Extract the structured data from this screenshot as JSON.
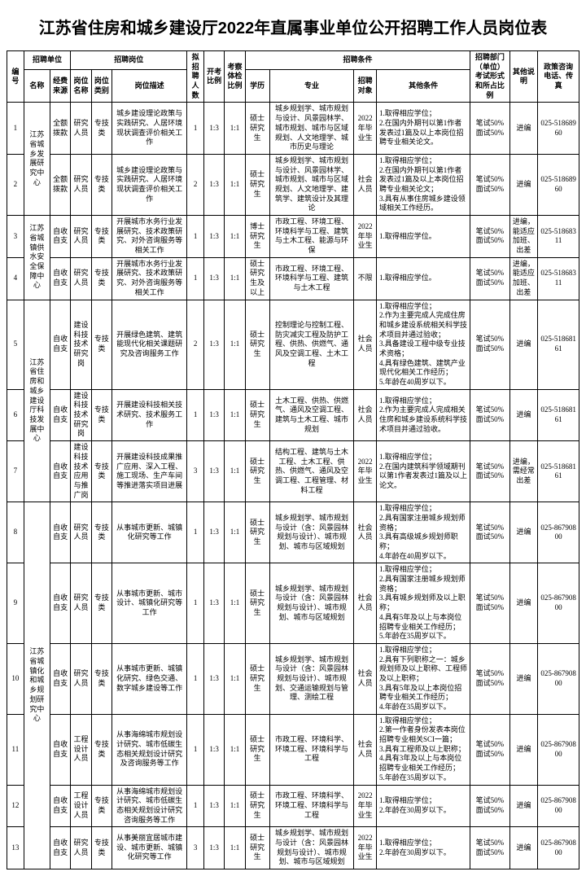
{
  "title": "江苏省住房和城乡建设厅2022年直属事业单位公开招聘工作人员岗位表",
  "headers": {
    "no": "编号",
    "unit_group": "招聘单位",
    "unit_name": "名称",
    "unit_fund": "经费来源",
    "pos_group": "招聘岗位",
    "pos_name": "岗位名称",
    "pos_cat": "岗位类别",
    "pos_desc": "岗位描述",
    "num": "拟招聘人数",
    "ratio1": "开考比例",
    "ratio2": "考察体检比例",
    "cond_group": "招聘条件",
    "edu": "学历",
    "major": "专业",
    "target": "招聘对象",
    "other": "其他条件",
    "exam": "招聘部门（单位）考试形式和所占比例",
    "note": "其他说明",
    "tel": "政策咨询电话、传真"
  },
  "rows": [
    {
      "no": "1",
      "unit": "江苏省城乡发展研究中心",
      "fund": "全额拨款",
      "pos": "研究人员",
      "cat": "专技类",
      "desc": "城乡建设理论政策与实践研究、人居环境现状调查评价相关工作",
      "num": "1",
      "r1": "1:3",
      "r2": "1:1",
      "edu": "硕士研究生",
      "major": "城乡规划学、城市规划与设计、风景园林学、城市规划、城市与区域规划、人文地理学、城市历史与理论",
      "target": "2022年毕业生",
      "other": "1.取得相应学位；\n2.在国内外期刊以第1作者发表过1篇及以上本岗位招聘专业相关论文。",
      "exam": "笔试50% 面试50%",
      "note": "进编",
      "tel": "025-51868960"
    },
    {
      "no": "2",
      "unit": "",
      "fund": "全额拨款",
      "pos": "研究人员",
      "cat": "专技类",
      "desc": "城乡建设理论政策与实践研究、人居环境现状调查评价相关工作",
      "num": "2",
      "r1": "1:3",
      "r2": "1:1",
      "edu": "硕士研究生",
      "major": "城乡规划学、城市规划与设计、风景园林学、城市规划、城市与区域规划、人文地理学、建筑学、建筑设计及其理论",
      "target": "社会人员",
      "other": "1.取得相应学位；\n2.在国内外期刊以第1作者发表过1篇及以上本岗位招聘专业相关论文；\n3.具有从事住房城乡建设领域相关工作经历。",
      "exam": "笔试50% 面试50%",
      "note": "进编",
      "tel": "025-51868960"
    },
    {
      "no": "3",
      "unit": "江苏省城镇供水安全保障中心",
      "fund": "自收自支",
      "pos": "研究人员",
      "cat": "专技类",
      "desc": "开展城市水务行业发展研究、技术政策研究、对外咨询服务等相关工作",
      "num": "1",
      "r1": "1:3",
      "r2": "1:1",
      "edu": "博士研究生",
      "major": "市政工程、环境工程、环境科学与工程、建筑与土木工程、能源与环保",
      "target": "2022年毕业生",
      "other": "1.取得相应学位。",
      "exam": "笔试50% 面试50%",
      "note": "进编，能适应加班、出差",
      "tel": "025-51868311"
    },
    {
      "no": "4",
      "unit": "",
      "fund": "自收自支",
      "pos": "研究人员",
      "cat": "专技类",
      "desc": "开展城市水务行业发展研究、技术政策研究、对外咨询服务等相关工作",
      "num": "1",
      "r1": "1:3",
      "r2": "1:1",
      "edu": "硕士研究生及以上",
      "major": "市政工程、环境工程、环境科学与工程、建筑与土木工程",
      "target": "不限",
      "other": "1.取得相应学位。",
      "exam": "笔试50% 面试50%",
      "note": "进编，能适应加班、出差",
      "tel": "025-51868311"
    },
    {
      "no": "5",
      "unit": "江苏省住房和城乡建设厅科技发展中心",
      "fund": "自收自支",
      "pos": "建设科技技术研究岗",
      "cat": "专技类",
      "desc": "开展绿色建筑、建筑能现代化相关课题研究及咨询服务工作",
      "num": "2",
      "r1": "1:3",
      "r2": "1:1",
      "edu": "硕士研究生",
      "major": "控制理论与控制工程、防灾减灾工程及防护工程、供热、供燃气、通风及空调工程、土木工程",
      "target": "社会人员",
      "other": "1.取得相应学位；\n2.作为主要完成人完成住房和城乡建设系统相关科学技术项目并通过验收；\n3.具备建设工程中级专业技术资格；\n4.具有绿色建筑、建筑产业现代化相关工作经历；\n5.年龄在40周岁以下。",
      "exam": "笔试50% 面试50%",
      "note": "进编",
      "tel": "025-51868161"
    },
    {
      "no": "6",
      "unit": "",
      "fund": "自收自支",
      "pos": "建设科技技术研究岗",
      "cat": "专技类",
      "desc": "开展建设科技相关技术研究、技术服务工作",
      "num": "1",
      "r1": "1:3",
      "r2": "1:1",
      "edu": "硕士研究生",
      "major": "土木工程、供热、供燃气、通风及空调工程、建筑与土木工程、城市规划",
      "target": "社会人员",
      "other": "1.取得相应学位；\n2.作为主要完成人完成相关住房和城乡建设系统科学技术项目并通过验收。",
      "exam": "笔试50% 面试50%",
      "note": "进编",
      "tel": "025-51868161"
    },
    {
      "no": "7",
      "unit": "",
      "fund": "自收自支",
      "pos": "建设科技技术应用与推广岗",
      "cat": "专技类",
      "desc": "开展建设科技成果推广应用、深入工程、施工现场、生产车间等推进落实项目进展",
      "num": "3",
      "r1": "1:3",
      "r2": "1:1",
      "edu": "硕士研究生",
      "major": "结构工程、建筑与土木工程、土木工程、供热、供燃气、通风及空调工程、工程管理、材料工程",
      "target": "2022年毕业生",
      "other": "1.取得相应学位；\n2.在国内建筑科学领域期刊以第1作者发表过1篇及以上论文。",
      "exam": "笔试50% 面试50%",
      "note": "进编，需经常出差",
      "tel": "025-51868161"
    },
    {
      "no": "8",
      "unit": "江苏省城镇化和城乡规划研究中心",
      "fund": "自收自支",
      "pos": "研究人员",
      "cat": "专技类",
      "desc": "从事城市更新、城镇化研究等工作",
      "num": "1",
      "r1": "1:3",
      "r2": "1:1",
      "edu": "硕士研究生",
      "major": "城乡规划学、城市规划与设计（含：风景园林规划与设计）、城市规划、城市与区域规划",
      "target": "社会人员",
      "other": "1.取得相应学位；\n2.具有国家注册城乡规划师资格；\n3.具有高级城乡规划师职称；\n4.年龄在40周岁以下。",
      "exam": "笔试50% 面试50%",
      "note": "进编",
      "tel": "025-86790800"
    },
    {
      "no": "9",
      "unit": "",
      "fund": "自收自支",
      "pos": "研究人员",
      "cat": "专技类",
      "desc": "从事城市更新、城市设计、城镇化研究等工作",
      "num": "1",
      "r1": "1:3",
      "r2": "1:1",
      "edu": "硕士研究生",
      "major": "城乡规划学、城市规划与设计（含：风景园林规划与设计）、城市规划、城市与区域规划",
      "target": "社会人员",
      "other": "1.取得相应学位；\n2.具有国家注册城乡规划师资格；\n3.具有城乡规划师及以上职称；\n4.具有5年及以上与本岗位招聘专业相关工作经历；\n5.年龄在35周岁以下。",
      "exam": "笔试50% 面试50%",
      "note": "进编",
      "tel": "025-86790800"
    },
    {
      "no": "10",
      "unit": "",
      "fund": "自收自支",
      "pos": "研究人员",
      "cat": "专技类",
      "desc": "从事城市更新、城镇化研究、绿色交通、数字城乡建设等工作",
      "num": "1",
      "r1": "1:3",
      "r2": "1:1",
      "edu": "硕士研究生",
      "major": "城乡规划学、城市规划与设计（含：风景园林规划与设计）、城市规划、交通运输规划与管理、测绘工程",
      "target": "社会人员",
      "other": "1.取得相应学位；\n2.具有下列职称之一：城乡规划师及以上职称、工程师及以上职称；\n3.具有5年及以上本岗位招聘专业相关工作经历；\n4.年龄在35周岁以下。",
      "exam": "笔试50% 面试50%",
      "note": "进编",
      "tel": "025-86790800"
    },
    {
      "no": "11",
      "unit": "",
      "fund": "自收自支",
      "pos": "工程设计人员",
      "cat": "专技类",
      "desc": "从事海绵城市规划设计研究、城市低碳生态相关规划设计研究及咨询服务等工作",
      "num": "1",
      "r1": "1:3",
      "r2": "1:1",
      "edu": "硕士研究生",
      "major": "市政工程、环境科学、环境工程、环境科学与工程",
      "target": "社会人员",
      "other": "1.取得相应学位；\n2.第一作者身份发表本岗位招聘专业相关SCI一篇；\n3.具有工程师及以上职称；\n4.具有3年及以上与本岗位招聘专业相关工作经历；\n5.年龄在35周岁以下。",
      "exam": "笔试50% 面试50%",
      "note": "进编",
      "tel": "025-86790800"
    },
    {
      "no": "12",
      "unit": "",
      "fund": "自收自支",
      "pos": "工程设计人员",
      "cat": "专技类",
      "desc": "从事海绵城市规划设计研究、城市低碳生态相关规划设计研究咨询服务等工作",
      "num": "1",
      "r1": "1:3",
      "r2": "1:1",
      "edu": "硕士研究生",
      "major": "市政工程、环境科学、环境工程、环境科学与工程",
      "target": "2022年毕业生",
      "other": "1.取得相应学位；\n2.年龄在30周岁以下。",
      "exam": "笔试50% 面试50%",
      "note": "进编",
      "tel": "025-86790800"
    },
    {
      "no": "13",
      "unit": "",
      "fund": "自收自支",
      "pos": "研究人员",
      "cat": "专技类",
      "desc": "从事美丽宜居城市建设、城市更新、城镇化研究等工作",
      "num": "3",
      "r1": "1:3",
      "r2": "1:1",
      "edu": "硕士研究生",
      "major": "城乡规划学、城市规划与设计（含：风景园林规划与设计）、城市规划、城市与区域规划",
      "target": "2022年毕业生",
      "other": "1.取得相应学位；\n2.年龄在30周岁以下。",
      "exam": "笔试50% 面试50%",
      "note": "进编",
      "tel": "025-86790800"
    }
  ],
  "unit_rowspans": {
    "1": 2,
    "3": 2,
    "5": 3,
    "8": 6
  }
}
